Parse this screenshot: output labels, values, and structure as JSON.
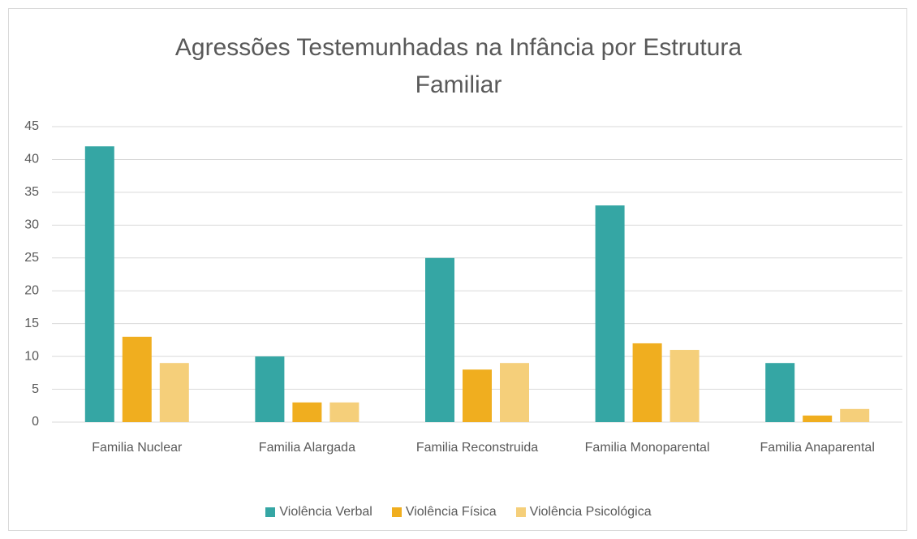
{
  "chart_data": {
    "type": "bar",
    "title": "Agressões Testemunhadas na Infância por Estrutura Familiar",
    "categories": [
      "Familia Nuclear",
      "Familia Alargada",
      "Familia Reconstruida",
      "Familia Monoparental",
      "Familia Anaparental"
    ],
    "series": [
      {
        "name": "Violência Verbal",
        "color": "#35a6a4",
        "values": [
          42,
          10,
          25,
          33,
          9
        ]
      },
      {
        "name": "Violência Física",
        "color": "#f0ae1f",
        "values": [
          13,
          3,
          8,
          12,
          1
        ]
      },
      {
        "name": "Violência Psicológica",
        "color": "#f5cf7a",
        "values": [
          9,
          3,
          9,
          11,
          2
        ]
      }
    ],
    "ylim": [
      0,
      45
    ],
    "yticks": [
      0,
      5,
      10,
      15,
      20,
      25,
      30,
      35,
      40,
      45
    ],
    "grid": true,
    "legend": "bottom"
  }
}
